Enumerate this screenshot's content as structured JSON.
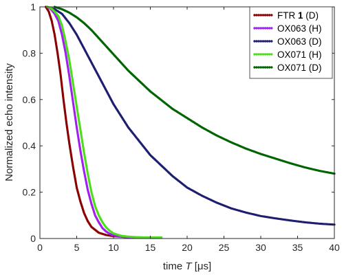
{
  "chart_data": {
    "type": "scatter",
    "xlabel": {
      "prefix": "time ",
      "symbol": "T",
      "unit": "[μs]"
    },
    "ylabel": "Normalized echo intensity",
    "xlim": [
      0,
      40
    ],
    "ylim": [
      0,
      1
    ],
    "xticks": [
      0,
      5,
      10,
      15,
      20,
      25,
      30,
      35,
      40
    ],
    "yticks": [
      0,
      0.2,
      0.4,
      0.6,
      0.8,
      1
    ],
    "ytick_labels": [
      "0",
      "0.2",
      "0.4",
      "0.6",
      "0.8",
      "1"
    ],
    "grid": false,
    "legend_position": "top-right",
    "series": [
      {
        "name": "FTR 1 (D)",
        "legend": {
          "prefix": "FTR ",
          "bold": "1",
          "suffix": " (D)"
        },
        "color": "#8b0000",
        "x": [
          0.8,
          1.2,
          1.6,
          2.0,
          2.4,
          2.8,
          3.2,
          3.6,
          4.0,
          4.5,
          5.0,
          5.5,
          6.0,
          6.5,
          7.0,
          8.0,
          9.0,
          10.0,
          11.0,
          12.0,
          13.0,
          14.0,
          15.0,
          16.0
        ],
        "y": [
          1.0,
          0.98,
          0.94,
          0.88,
          0.8,
          0.71,
          0.6,
          0.5,
          0.41,
          0.31,
          0.22,
          0.16,
          0.11,
          0.075,
          0.05,
          0.025,
          0.015,
          0.01,
          0.008,
          0.006,
          0.005,
          0.004,
          0.003,
          0.003
        ]
      },
      {
        "name": "OX063 (H)",
        "legend": {
          "prefix": "OX063 (H)",
          "bold": "",
          "suffix": ""
        },
        "color": "#a020f0",
        "x": [
          1.0,
          1.5,
          2.0,
          2.5,
          3.0,
          3.5,
          4.0,
          4.5,
          5.0,
          5.5,
          6.0,
          6.5,
          7.0,
          7.5,
          8.0,
          8.5,
          9.0,
          9.5,
          10.0,
          11.0,
          12.0,
          13.0,
          14.0,
          15.0,
          16.5
        ],
        "y": [
          1.0,
          0.99,
          0.97,
          0.94,
          0.88,
          0.8,
          0.7,
          0.59,
          0.48,
          0.38,
          0.29,
          0.21,
          0.15,
          0.1,
          0.07,
          0.045,
          0.03,
          0.02,
          0.013,
          0.008,
          0.006,
          0.005,
          0.004,
          0.004,
          0.004
        ]
      },
      {
        "name": "OX063 (D)",
        "legend": {
          "prefix": "OX063 (D)",
          "bold": "",
          "suffix": ""
        },
        "color": "#1f1f70",
        "x": [
          1.0,
          2.0,
          3.0,
          4.0,
          5.0,
          6.0,
          7.0,
          8.0,
          9.0,
          10.0,
          11.0,
          12.0,
          13.0,
          14.0,
          15.0,
          16.0,
          17.0,
          18.0,
          19.0,
          20.0,
          22.0,
          24.0,
          26.0,
          28.0,
          30.0,
          32.0,
          34.0,
          36.0,
          38.0,
          40.0
        ],
        "y": [
          1.0,
          0.99,
          0.97,
          0.93,
          0.88,
          0.82,
          0.76,
          0.7,
          0.64,
          0.58,
          0.53,
          0.48,
          0.44,
          0.4,
          0.36,
          0.33,
          0.3,
          0.27,
          0.245,
          0.22,
          0.185,
          0.155,
          0.13,
          0.112,
          0.097,
          0.087,
          0.078,
          0.07,
          0.064,
          0.06
        ]
      },
      {
        "name": "OX071 (H)",
        "legend": {
          "prefix": "OX071 (H)",
          "bold": "",
          "suffix": ""
        },
        "color": "#4cde1a",
        "x": [
          1.0,
          1.5,
          2.0,
          2.5,
          3.0,
          3.5,
          4.0,
          4.5,
          5.0,
          5.5,
          6.0,
          6.5,
          7.0,
          7.5,
          8.0,
          8.5,
          9.0,
          9.5,
          10.0,
          11.0,
          12.0,
          13.0,
          14.0,
          15.0,
          16.5
        ],
        "y": [
          1.0,
          0.995,
          0.98,
          0.96,
          0.92,
          0.85,
          0.77,
          0.67,
          0.57,
          0.47,
          0.37,
          0.28,
          0.2,
          0.14,
          0.1,
          0.07,
          0.048,
          0.033,
          0.022,
          0.012,
          0.008,
          0.006,
          0.005,
          0.005,
          0.005
        ]
      },
      {
        "name": "OX071 (D)",
        "legend": {
          "prefix": "OX071 (D)",
          "bold": "",
          "suffix": ""
        },
        "color": "#006400",
        "x": [
          2.0,
          3.0,
          4.0,
          5.0,
          6.0,
          7.0,
          8.0,
          9.0,
          10.0,
          11.0,
          12.0,
          13.0,
          14.0,
          15.0,
          16.0,
          17.0,
          18.0,
          19.0,
          20.0,
          22.0,
          24.0,
          26.0,
          28.0,
          30.0,
          32.0,
          34.0,
          36.0,
          38.0,
          40.0
        ],
        "y": [
          1.0,
          0.99,
          0.975,
          0.955,
          0.93,
          0.9,
          0.865,
          0.83,
          0.795,
          0.76,
          0.725,
          0.695,
          0.665,
          0.635,
          0.61,
          0.585,
          0.56,
          0.54,
          0.52,
          0.48,
          0.445,
          0.415,
          0.388,
          0.365,
          0.345,
          0.325,
          0.307,
          0.292,
          0.28
        ]
      }
    ]
  }
}
